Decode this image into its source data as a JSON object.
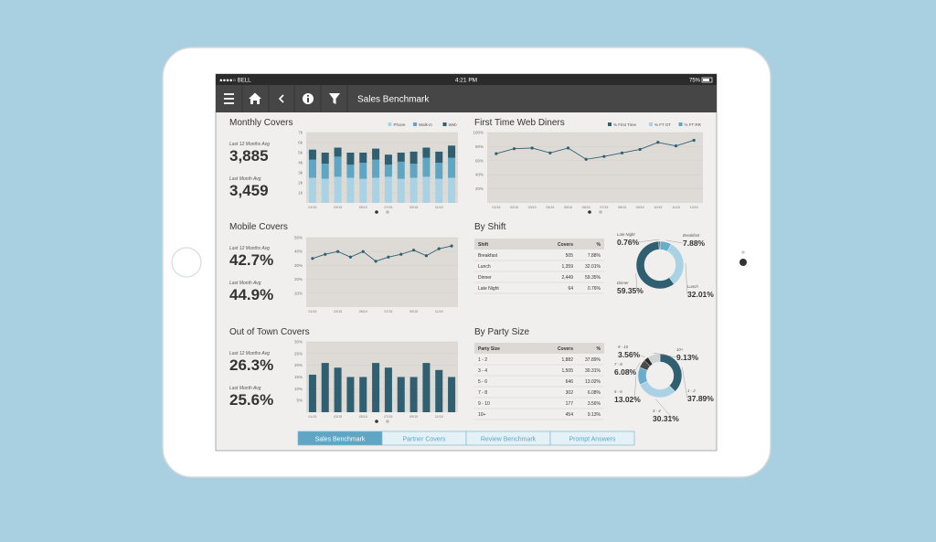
{
  "status_bar": {
    "carrier": "●●●●○ BELL",
    "time": "4:21 PM",
    "battery": "75%"
  },
  "nav": {
    "title": "Sales Benchmark"
  },
  "monthly_covers": {
    "title": "Monthly Covers",
    "stats": [
      {
        "label": "Last 12 Months Avg",
        "value": "3,885"
      },
      {
        "label": "Last Month Avg",
        "value": "3,459"
      }
    ],
    "chart": {
      "type": "bar",
      "stacked": true,
      "categories": [
        "01/15",
        null,
        "03/15",
        null,
        "05/15",
        null,
        "07/15",
        null,
        "09/15",
        null,
        "11/15",
        null
      ],
      "series": [
        {
          "name": "Phone",
          "color": "#a9d3e4",
          "values": [
            2500,
            2400,
            2600,
            2500,
            2400,
            2500,
            2600,
            2400,
            2500,
            2600,
            2400,
            2500
          ]
        },
        {
          "name": "Walk-in",
          "color": "#5ea6c4",
          "values": [
            1800,
            1500,
            2000,
            1300,
            1600,
            1800,
            1200,
            1700,
            1400,
            1900,
            1600,
            2000
          ]
        },
        {
          "name": "Web",
          "color": "#2f5f70",
          "values": [
            1000,
            1100,
            900,
            1200,
            1000,
            1100,
            1000,
            900,
            1200,
            1000,
            1100,
            1200
          ]
        }
      ],
      "ylim": [
        0,
        7000
      ],
      "yticks": [
        {
          "value": 1000,
          "label": "1k"
        },
        {
          "value": 2000,
          "label": "2k"
        },
        {
          "value": 3000,
          "label": "3k"
        },
        {
          "value": 4000,
          "label": "4k"
        },
        {
          "value": 5000,
          "label": "5k"
        },
        {
          "value": 6000,
          "label": "6k"
        },
        {
          "value": 7000,
          "label": "7k"
        }
      ],
      "grid": true
    }
  },
  "first_time_web_diners": {
    "title": "First Time Web Diners",
    "chart": {
      "type": "line",
      "color": "#2f5f70",
      "legend": [
        {
          "name": "% First Time",
          "color": "#2f5f70"
        },
        {
          "name": "% FT OT",
          "color": "#a9d3e4"
        },
        {
          "name": "% FT RR",
          "color": "#5ea6c4"
        }
      ],
      "categories": [
        "01/15",
        "02/15",
        "03/15",
        "04/15",
        "05/15",
        "06/15",
        "07/15",
        "08/15",
        "09/15",
        "10/15",
        "11/15",
        "12/15"
      ],
      "values": [
        70,
        77,
        78,
        71,
        78,
        62,
        66,
        71,
        76,
        86,
        81,
        89
      ],
      "ylim": [
        0,
        100
      ],
      "yticks": [
        {
          "value": 20,
          "label": "20%"
        },
        {
          "value": 40,
          "label": "40%"
        },
        {
          "value": 60,
          "label": "60%"
        },
        {
          "value": 80,
          "label": "80%"
        },
        {
          "value": 100,
          "label": "100%"
        }
      ],
      "grid": true
    }
  },
  "mobile_covers": {
    "title": "Mobile Covers",
    "stats": [
      {
        "label": "Last 12 Months Avg",
        "value": "42.7%"
      },
      {
        "label": "Last Month Avg",
        "value": "44.9%"
      }
    ],
    "chart": {
      "type": "line",
      "color": "#2f5f70",
      "categories": [
        "01/15",
        null,
        "03/15",
        null,
        "05/15",
        null,
        "07/15",
        null,
        "09/15",
        null,
        "11/15",
        null
      ],
      "values": [
        35,
        38,
        40,
        36,
        40,
        33,
        36,
        38,
        41,
        37,
        42,
        44
      ],
      "ylim": [
        0,
        50
      ],
      "yticks": [
        {
          "value": 10,
          "label": "10%"
        },
        {
          "value": 20,
          "label": "20%"
        },
        {
          "value": 30,
          "label": "30%"
        },
        {
          "value": 40,
          "label": "40%"
        },
        {
          "value": 50,
          "label": "50%"
        }
      ],
      "grid": true
    }
  },
  "out_of_town_covers": {
    "title": "Out of Town Covers",
    "stats": [
      {
        "label": "Last 12 Months Avg",
        "value": "26.3%"
      },
      {
        "label": "Last Month Avg",
        "value": "25.6%"
      }
    ],
    "chart": {
      "type": "bar",
      "color": "#2f5f70",
      "categories": [
        "01/15",
        null,
        "03/15",
        null,
        "05/15",
        null,
        "07/15",
        null,
        "09/15",
        null,
        "11/15",
        null
      ],
      "values": [
        16,
        21,
        19,
        15,
        15,
        21,
        19,
        15,
        15,
        21,
        18,
        15
      ],
      "ylim": [
        0,
        30
      ],
      "yticks": [
        {
          "value": 5,
          "label": "5%"
        },
        {
          "value": 10,
          "label": "10%"
        },
        {
          "value": 15,
          "label": "15%"
        },
        {
          "value": 20,
          "label": "20%"
        },
        {
          "value": 25,
          "label": "25%"
        },
        {
          "value": 30,
          "label": "30%"
        }
      ],
      "grid": true
    }
  },
  "by_shift": {
    "title": "By Shift",
    "table": {
      "columns": [
        "Shift",
        "Covers",
        "%"
      ],
      "rows": [
        [
          "Breakfast",
          "505",
          "7.88%"
        ],
        [
          "Lunch",
          "1,359",
          "32.01%"
        ],
        [
          "Dinner",
          "2,449",
          "59.35%"
        ],
        [
          "Late Night",
          "64",
          "0.76%"
        ]
      ]
    },
    "chart": {
      "type": "pie",
      "donut": true,
      "categories": [
        "Breakfast",
        "Lunch",
        "Dinner",
        "Late Night"
      ],
      "values": [
        7.88,
        32.01,
        59.35,
        0.76
      ],
      "value_labels": [
        "7.88%",
        "32.01%",
        "59.35%",
        "0.76%"
      ],
      "colors": [
        "#6aaccc",
        "#a9d3e4",
        "#2f5f70",
        "#333333"
      ]
    }
  },
  "by_party_size": {
    "title": "By Party Size",
    "table": {
      "columns": [
        "Party Size",
        "Covers",
        "%"
      ],
      "rows": [
        [
          "1 - 2",
          "1,882",
          "37.89%"
        ],
        [
          "3 - 4",
          "1,505",
          "30.31%"
        ],
        [
          "5 - 6",
          "646",
          "13.02%"
        ],
        [
          "7 - 8",
          "302",
          "6.08%"
        ],
        [
          "9 - 10",
          "177",
          "3.56%"
        ],
        [
          "10+",
          "454",
          "9.13%"
        ]
      ]
    },
    "chart": {
      "type": "pie",
      "donut": true,
      "categories": [
        "1 - 2",
        "3 - 4",
        "5 - 6",
        "7 - 8",
        "9 - 10",
        "10+"
      ],
      "values": [
        37.89,
        30.31,
        13.02,
        6.08,
        3.56,
        9.13
      ],
      "value_labels": [
        "37.89%",
        "30.31%",
        "13.02%",
        "6.08%",
        "3.56%",
        "9.13%"
      ],
      "colors": [
        "#2f5f70",
        "#a9d3e4",
        "#6aaccc",
        "#4a4a4a",
        "#2b2b2b",
        "#cfd3d4"
      ]
    }
  },
  "tabs": [
    "Sales Benchmark",
    "Partner Covers",
    "Review Benchmark",
    "Prompt Answers"
  ]
}
